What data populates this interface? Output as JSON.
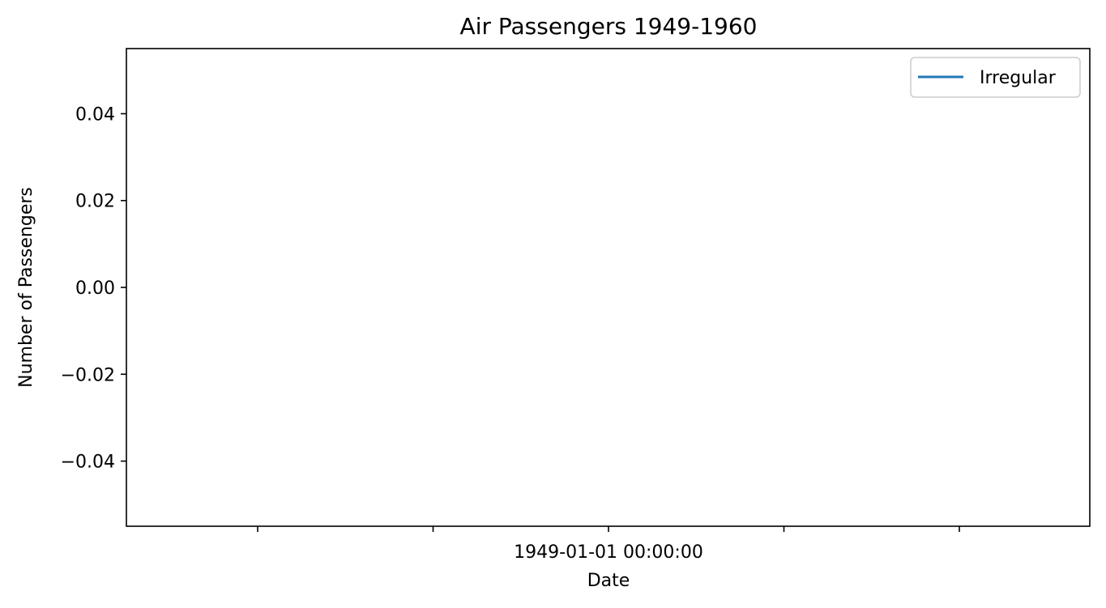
{
  "chart_data": {
    "type": "line",
    "title": "Air Passengers 1949-1960",
    "xlabel": "Date",
    "ylabel": "Number of Passengers",
    "x_axis": {
      "scale": "date",
      "tick_labels": [
        "",
        "",
        "1949-01-01 00:00:00",
        "",
        ""
      ]
    },
    "y_axis": {
      "ylim": [
        -0.055,
        0.055
      ],
      "ticks": [
        -0.04,
        -0.02,
        0.0,
        0.02,
        0.04
      ],
      "tick_labels": [
        "−0.04",
        "−0.02",
        "0.00",
        "0.02",
        "0.04"
      ]
    },
    "series": [
      {
        "name": "Irregular",
        "color": "#1f77b4",
        "x": [],
        "y": []
      }
    ],
    "grid": false,
    "legend_position": "upper right"
  }
}
